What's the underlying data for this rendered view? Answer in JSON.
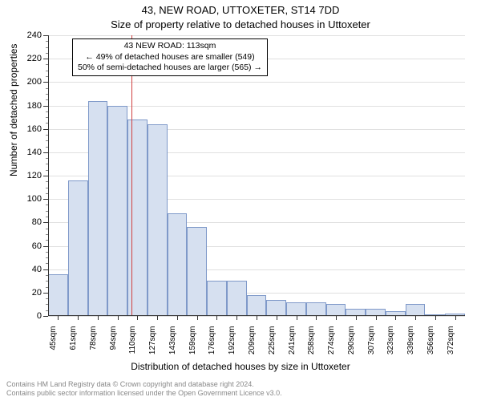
{
  "title": {
    "line1": "43, NEW ROAD, UTTOXETER, ST14 7DD",
    "line2": "Size of property relative to detached houses in Uttoxeter",
    "fontsize": 13,
    "color": "#000000"
  },
  "chart": {
    "type": "histogram",
    "categories": [
      "45sqm",
      "61sqm",
      "78sqm",
      "94sqm",
      "110sqm",
      "127sqm",
      "143sqm",
      "159sqm",
      "176sqm",
      "192sqm",
      "209sqm",
      "225sqm",
      "241sqm",
      "258sqm",
      "274sqm",
      "290sqm",
      "307sqm",
      "323sqm",
      "339sqm",
      "356sqm",
      "372sqm"
    ],
    "values": [
      36,
      116,
      184,
      180,
      168,
      164,
      88,
      76,
      30,
      30,
      18,
      14,
      12,
      12,
      10,
      6,
      6,
      4,
      10,
      0,
      2
    ],
    "bar_fill": "#d6e0f0",
    "bar_stroke": "#7f99c9",
    "background_color": "#ffffff",
    "grid_color": "#e0e0e0",
    "axis_color": "#333333",
    "ylim": [
      0,
      240
    ],
    "ytick_step": 20,
    "yticks": [
      0,
      20,
      40,
      60,
      80,
      100,
      120,
      140,
      160,
      180,
      200,
      220,
      240
    ],
    "y_minor_step": 5,
    "label_fontsize": 11,
    "xtick_rotation": -90,
    "reference": {
      "x_value": "113sqm",
      "x_index_fractional": 4.18,
      "line_color": "#d04040"
    },
    "annotation": {
      "lines": [
        "43 NEW ROAD: 113sqm",
        "← 49% of detached houses are smaller (549)",
        "50% of semi-detached houses are larger (565) →"
      ],
      "border_color": "#000000",
      "fontsize": 10.5
    },
    "ylabel": "Number of detached properties",
    "xlabel": "Distribution of detached houses by size in Uttoxeter",
    "ylabel_fontsize": 12,
    "xlabel_fontsize": 12
  },
  "footer": {
    "line1": "Contains HM Land Registry data © Crown copyright and database right 2024.",
    "line2": "Contains public sector information licensed under the Open Government Licence v3.0.",
    "color": "#888888",
    "fontsize": 9
  }
}
